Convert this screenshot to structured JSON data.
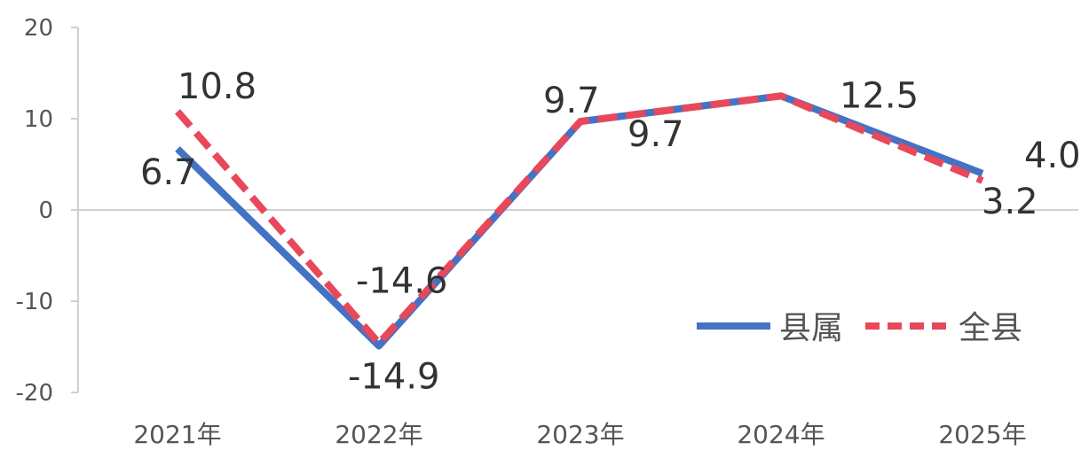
{
  "chart_data": {
    "type": "line",
    "categories": [
      "2021年",
      "2022年",
      "2023年",
      "2024年",
      "2025年"
    ],
    "series": [
      {
        "name": "县属",
        "values": [
          6.7,
          -14.9,
          9.7,
          12.5,
          4.0
        ],
        "labels": [
          "6.7",
          "-14.9",
          "9.7",
          "",
          "4.0"
        ],
        "color": "#4472C4",
        "dash": "solid"
      },
      {
        "name": "全县",
        "values": [
          10.8,
          -14.6,
          9.7,
          12.5,
          3.2
        ],
        "labels": [
          "10.8",
          "-14.6",
          "9.7",
          "12.5",
          "3.2"
        ],
        "color": "#E8485A",
        "dash": "dashed"
      }
    ],
    "ylim": [
      -20,
      20
    ],
    "yticks": [
      "20",
      "10",
      "0",
      "-10",
      "-20"
    ],
    "grid": false,
    "zero_line": true,
    "legend_position": "bottom-right"
  }
}
